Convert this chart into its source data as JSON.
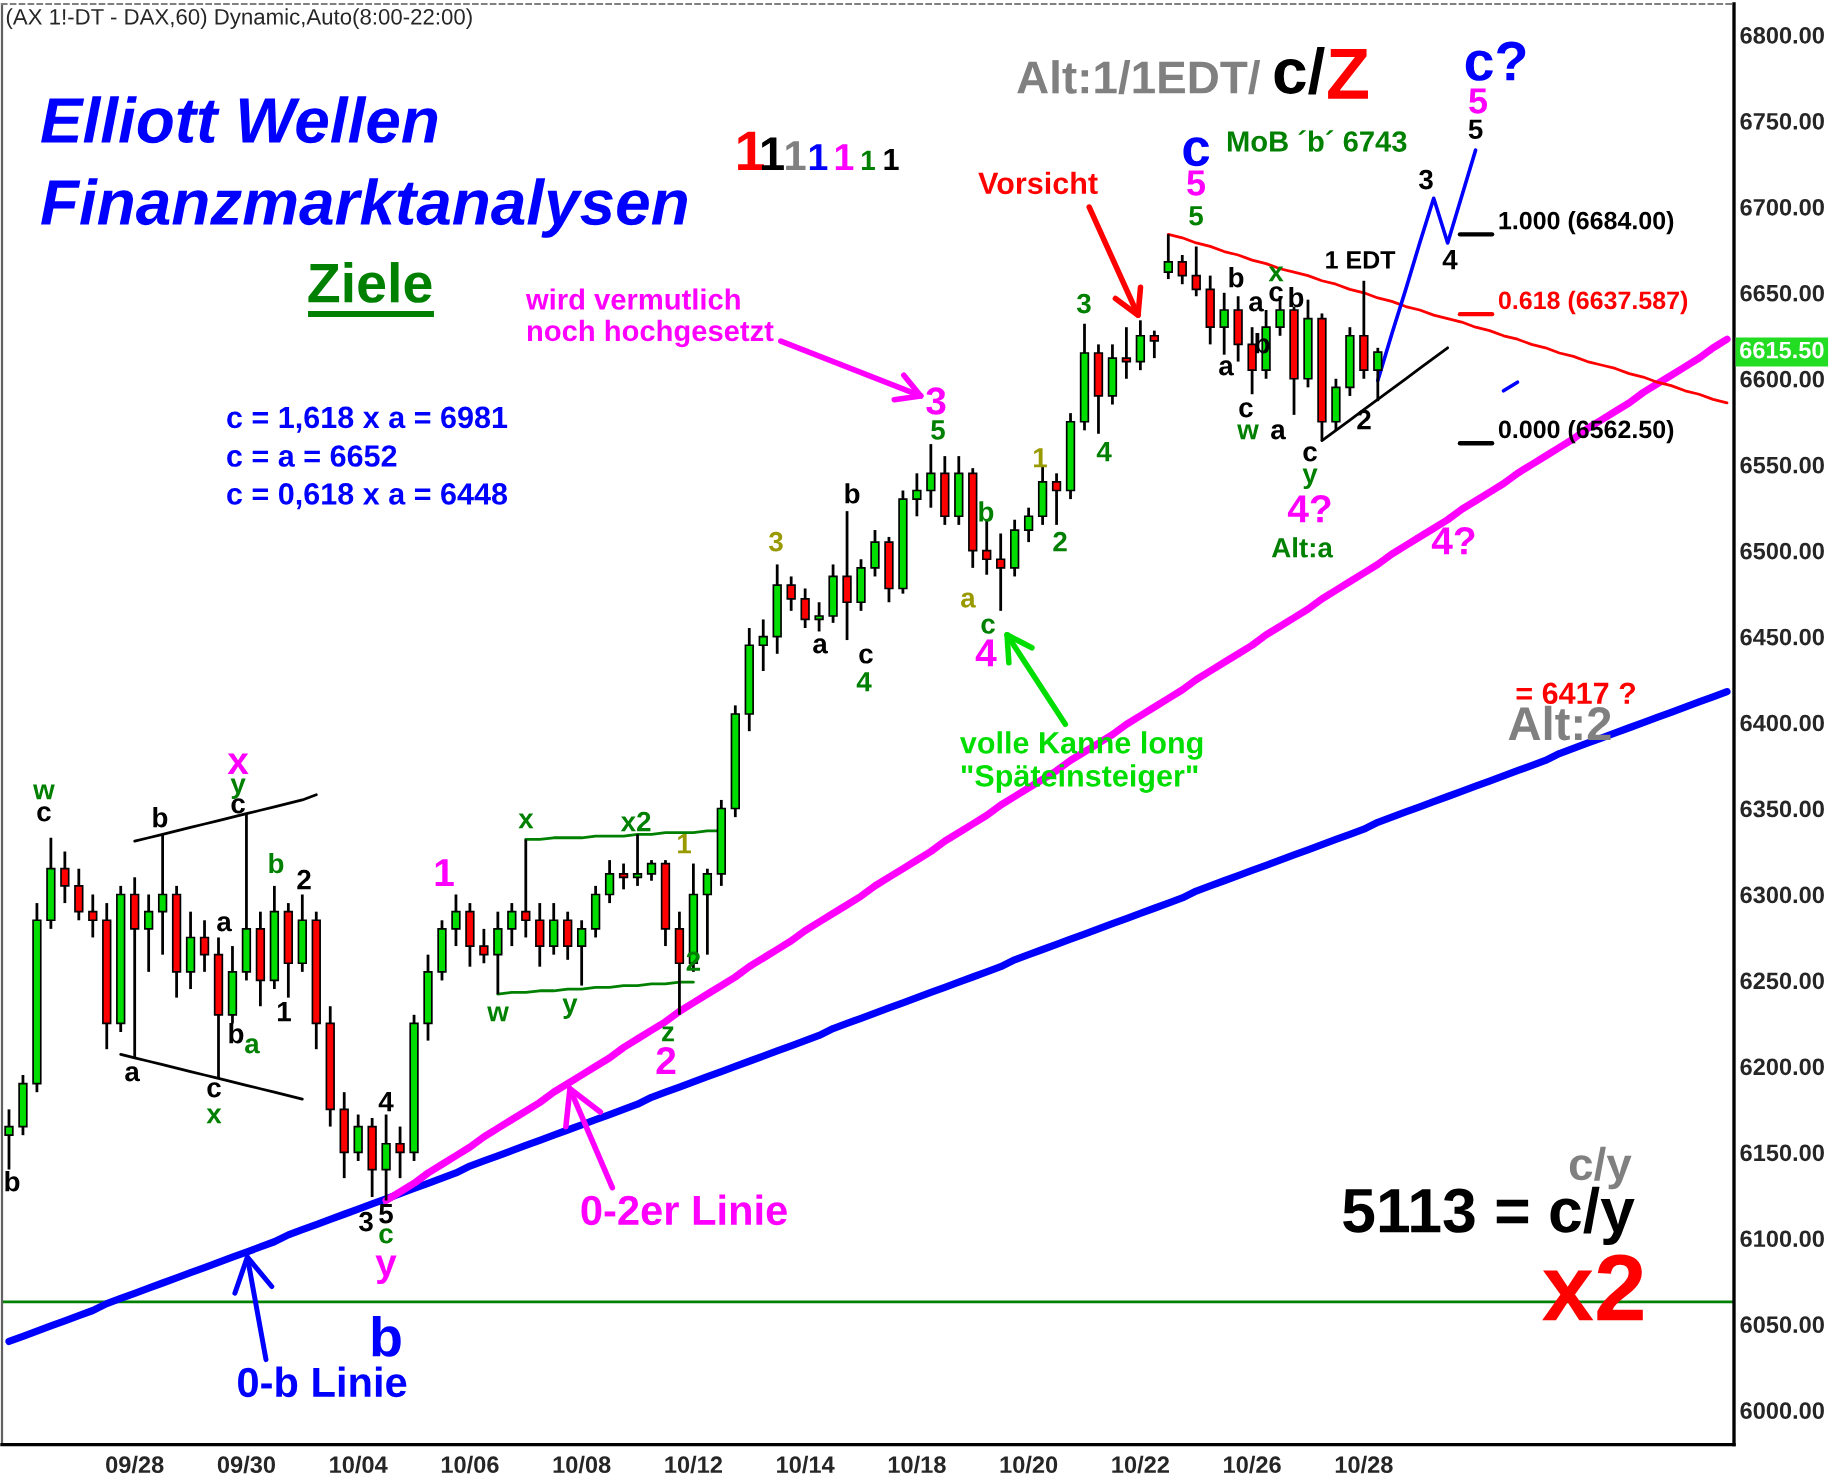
{
  "chart_data": {
    "type": "candlestick",
    "title": "(AX 1!-DT - DAX,60) Dynamic,Auto(8:00-22:00)",
    "categories": [
      null,
      null,
      null,
      null,
      null,
      null,
      null,
      null,
      null,
      "09/28",
      null,
      null,
      null,
      null,
      null,
      null,
      null,
      "09/30",
      null,
      null,
      null,
      null,
      null,
      null,
      null,
      "10/04",
      null,
      null,
      null,
      null,
      null,
      null,
      null,
      "10/06",
      null,
      null,
      null,
      null,
      null,
      null,
      null,
      "10/08",
      null,
      null,
      null,
      null,
      null,
      null,
      null,
      "10/12",
      null,
      null,
      null,
      null,
      null,
      null,
      null,
      "10/14",
      null,
      null,
      null,
      null,
      null,
      null,
      null,
      "10/18",
      null,
      null,
      null,
      null,
      null,
      null,
      null,
      "10/20",
      null,
      null,
      null,
      null,
      null,
      null,
      null,
      "10/22",
      null,
      null,
      null,
      null,
      null,
      null,
      null,
      "10/26",
      null,
      null,
      null,
      null,
      null,
      null,
      null,
      "10/28",
      null,
      null,
      null,
      null,
      null,
      null,
      null,
      null,
      null,
      null,
      null,
      null,
      null,
      null,
      null,
      null,
      null,
      null,
      null,
      null,
      null,
      null,
      null,
      null,
      null,
      null
    ],
    "ohlc": [
      [
        6160,
        6175,
        6140,
        6165
      ],
      [
        6165,
        6195,
        6160,
        6190
      ],
      [
        6190,
        6295,
        6185,
        6285
      ],
      [
        6285,
        6333,
        6280,
        6315
      ],
      [
        6315,
        6325,
        6295,
        6305
      ],
      [
        6305,
        6315,
        6285,
        6290
      ],
      [
        6290,
        6300,
        6275,
        6285
      ],
      [
        6285,
        6295,
        6210,
        6225
      ],
      [
        6225,
        6305,
        6220,
        6300
      ],
      [
        6300,
        6310,
        6205,
        6280
      ],
      [
        6280,
        6300,
        6255,
        6290
      ],
      [
        6290,
        6335,
        6265,
        6300
      ],
      [
        6300,
        6305,
        6240,
        6255
      ],
      [
        6255,
        6290,
        6245,
        6275
      ],
      [
        6275,
        6285,
        6255,
        6265
      ],
      [
        6265,
        6275,
        6193,
        6230
      ],
      [
        6230,
        6270,
        6225,
        6255
      ],
      [
        6255,
        6347,
        6250,
        6280
      ],
      [
        6280,
        6290,
        6235,
        6250
      ],
      [
        6250,
        6305,
        6245,
        6290
      ],
      [
        6290,
        6295,
        6240,
        6260
      ],
      [
        6260,
        6300,
        6255,
        6285
      ],
      [
        6285,
        6290,
        6210,
        6225
      ],
      [
        6225,
        6235,
        6165,
        6175
      ],
      [
        6175,
        6185,
        6135,
        6150
      ],
      [
        6150,
        6172,
        6145,
        6165
      ],
      [
        6165,
        6170,
        6124,
        6140
      ],
      [
        6140,
        6172,
        6122,
        6155
      ],
      [
        6155,
        6165,
        6135,
        6150
      ],
      [
        6150,
        6230,
        6145,
        6225
      ],
      [
        6225,
        6265,
        6215,
        6255
      ],
      [
        6255,
        6285,
        6250,
        6280
      ],
      [
        6280,
        6300,
        6270,
        6290
      ],
      [
        6290,
        6295,
        6258,
        6270
      ],
      [
        6270,
        6280,
        6260,
        6265
      ],
      [
        6265,
        6290,
        6242,
        6280
      ],
      [
        6280,
        6295,
        6270,
        6290
      ],
      [
        6290,
        6332,
        6275,
        6285
      ],
      [
        6285,
        6295,
        6258,
        6270
      ],
      [
        6270,
        6295,
        6265,
        6285
      ],
      [
        6285,
        6290,
        6262,
        6270
      ],
      [
        6270,
        6285,
        6247,
        6280
      ],
      [
        6280,
        6305,
        6275,
        6300
      ],
      [
        6300,
        6320,
        6295,
        6312
      ],
      [
        6312,
        6318,
        6303,
        6310
      ],
      [
        6310,
        6335,
        6305,
        6312
      ],
      [
        6312,
        6320,
        6308,
        6318
      ],
      [
        6318,
        6320,
        6270,
        6280
      ],
      [
        6280,
        6290,
        6230,
        6260
      ],
      [
        6260,
        6318,
        6255,
        6300
      ],
      [
        6300,
        6315,
        6265,
        6312
      ],
      [
        6312,
        6355,
        6305,
        6350
      ],
      [
        6350,
        6410,
        6345,
        6405
      ],
      [
        6405,
        6455,
        6395,
        6445
      ],
      [
        6445,
        6460,
        6430,
        6450
      ],
      [
        6450,
        6492,
        6440,
        6480
      ],
      [
        6480,
        6485,
        6465,
        6472
      ],
      [
        6472,
        6478,
        6455,
        6460
      ],
      [
        6460,
        6470,
        6453,
        6462
      ],
      [
        6462,
        6492,
        6458,
        6485
      ],
      [
        6485,
        6523,
        6448,
        6470
      ],
      [
        6470,
        6495,
        6465,
        6490
      ],
      [
        6490,
        6512,
        6485,
        6505
      ],
      [
        6505,
        6508,
        6470,
        6478
      ],
      [
        6478,
        6535,
        6475,
        6530
      ],
      [
        6530,
        6545,
        6520,
        6535
      ],
      [
        6535,
        6562,
        6525,
        6545
      ],
      [
        6545,
        6555,
        6515,
        6520
      ],
      [
        6520,
        6555,
        6515,
        6545
      ],
      [
        6545,
        6548,
        6490,
        6500
      ],
      [
        6500,
        6518,
        6486,
        6495
      ],
      [
        6495,
        6510,
        6465,
        6490
      ],
      [
        6490,
        6518,
        6485,
        6512
      ],
      [
        6512,
        6525,
        6505,
        6520
      ],
      [
        6520,
        6549,
        6515,
        6540
      ],
      [
        6540,
        6545,
        6515,
        6535
      ],
      [
        6535,
        6580,
        6530,
        6575
      ],
      [
        6575,
        6632,
        6570,
        6615
      ],
      [
        6615,
        6620,
        6568,
        6590
      ],
      [
        6590,
        6620,
        6585,
        6612
      ],
      [
        6612,
        6630,
        6600,
        6610
      ],
      [
        6610,
        6634,
        6605,
        6625
      ],
      [
        6625,
        6628,
        6612,
        6622
      ],
      [
        6662,
        6684,
        6658,
        6668
      ],
      [
        6668,
        6672,
        6655,
        6660
      ],
      [
        6660,
        6677,
        6648,
        6652
      ],
      [
        6652,
        6660,
        6620,
        6630
      ],
      [
        6630,
        6650,
        6614,
        6640
      ],
      [
        6640,
        6648,
        6610,
        6620
      ],
      [
        6620,
        6630,
        6591,
        6605
      ],
      [
        6605,
        6640,
        6600,
        6630
      ],
      [
        6630,
        6648,
        6625,
        6640
      ],
      [
        6640,
        6642,
        6579,
        6600
      ],
      [
        6600,
        6646,
        6595,
        6635
      ],
      [
        6635,
        6638,
        6564,
        6575
      ],
      [
        6575,
        6600,
        6570,
        6595
      ],
      [
        6595,
        6630,
        6590,
        6625
      ],
      [
        6625,
        6657,
        6600,
        6605
      ],
      [
        6605,
        6618,
        6587,
        6615.5
      ],
      null,
      null,
      null,
      null,
      null,
      null,
      null,
      null,
      null,
      null,
      null,
      null,
      null,
      null,
      null,
      null,
      null,
      null,
      null,
      null,
      null,
      null,
      null,
      null,
      null
    ],
    "series": [
      {
        "type": "line",
        "color": "#0000ff",
        "values": [
          6040,
          6043,
          6046,
          6049,
          6052,
          6055,
          6058,
          6062,
          6065,
          6068,
          6071,
          6074,
          6077,
          6080,
          6083,
          6086,
          6089,
          6092,
          6095,
          6098,
          6102,
          6105,
          6108,
          6111,
          6114,
          6117,
          6120,
          6123,
          6126,
          6129,
          6132,
          6135,
          6138,
          6142,
          6145,
          6148,
          6151,
          6154,
          6157,
          6160,
          6163,
          6166,
          6169,
          6172,
          6175,
          6178,
          6182,
          6185,
          6188,
          6191,
          6194,
          6197,
          6200,
          6203,
          6206,
          6209,
          6212,
          6215,
          6218,
          6222,
          6225,
          6228,
          6231,
          6234,
          6237,
          6240,
          6243,
          6246,
          6249,
          6252,
          6255,
          6258,
          6262,
          6265,
          6268,
          6271,
          6274,
          6277,
          6280,
          6283,
          6286,
          6289,
          6292,
          6295,
          6298,
          6302,
          6305,
          6308,
          6311,
          6314,
          6317,
          6320,
          6323,
          6326,
          6329,
          6332,
          6335,
          6338,
          6342,
          6345,
          6348,
          6351,
          6354,
          6357,
          6360,
          6363,
          6366,
          6369,
          6372,
          6375,
          6378,
          6382,
          6385,
          6388,
          6391,
          6394,
          6397,
          6400,
          6403,
          6406,
          6409,
          6412,
          6415,
          6418
        ]
      },
      {
        "type": "line",
        "color": "#ff00ff",
        "values": [
          null,
          null,
          null,
          null,
          null,
          null,
          null,
          null,
          null,
          null,
          null,
          null,
          null,
          null,
          null,
          null,
          null,
          null,
          null,
          null,
          null,
          null,
          null,
          null,
          null,
          null,
          null,
          6122,
          6127,
          6132,
          6138,
          6143,
          6148,
          6153,
          6159,
          6164,
          6169,
          6174,
          6179,
          6185,
          6190,
          6195,
          6200,
          6205,
          6211,
          6216,
          6221,
          6226,
          6232,
          6237,
          6242,
          6247,
          6252,
          6258,
          6263,
          6268,
          6273,
          6279,
          6284,
          6289,
          6294,
          6299,
          6305,
          6310,
          6315,
          6320,
          6325,
          6331,
          6336,
          6341,
          6346,
          6352,
          6357,
          6362,
          6367,
          6372,
          6378,
          6383,
          6388,
          6393,
          6399,
          6404,
          6409,
          6414,
          6419,
          6425,
          6430,
          6435,
          6440,
          6445,
          6451,
          6456,
          6461,
          6466,
          6472,
          6477,
          6482,
          6487,
          6492,
          6498,
          6503,
          6508,
          6513,
          6518,
          6524,
          6529,
          6534,
          6539,
          6545,
          6550,
          6555,
          6560,
          6565,
          6571,
          6576,
          6581,
          6586,
          6592,
          6597,
          6602,
          6607,
          6612,
          6618,
          6623
        ]
      },
      {
        "type": "line",
        "color": "#ff0000",
        "values": [
          null,
          null,
          null,
          null,
          null,
          null,
          null,
          null,
          null,
          null,
          null,
          null,
          null,
          null,
          null,
          null,
          null,
          null,
          null,
          null,
          null,
          null,
          null,
          null,
          null,
          null,
          null,
          null,
          null,
          null,
          null,
          null,
          null,
          null,
          null,
          null,
          null,
          null,
          null,
          null,
          null,
          null,
          null,
          null,
          null,
          null,
          null,
          null,
          null,
          null,
          null,
          null,
          null,
          null,
          null,
          null,
          null,
          null,
          null,
          null,
          null,
          null,
          null,
          null,
          null,
          null,
          null,
          null,
          null,
          null,
          null,
          null,
          null,
          null,
          null,
          null,
          null,
          null,
          null,
          null,
          null,
          null,
          null,
          6684,
          6682,
          6679,
          6677,
          6674,
          6672,
          6669,
          6667,
          6664,
          6662,
          6660,
          6657,
          6655,
          6652,
          6650,
          6647,
          6645,
          6642,
          6640,
          6637,
          6635,
          6633,
          6630,
          6628,
          6625,
          6623,
          6620,
          6618,
          6615,
          6613,
          6610,
          6608,
          6606,
          6603,
          6601,
          6598,
          6596,
          6593,
          6591,
          6588,
          6586
        ]
      },
      {
        "type": "line",
        "color": "#000000",
        "values": [
          null,
          null,
          null,
          null,
          null,
          null,
          null,
          null,
          null,
          null,
          null,
          null,
          null,
          null,
          null,
          null,
          null,
          null,
          null,
          null,
          null,
          null,
          null,
          null,
          null,
          null,
          null,
          null,
          null,
          null,
          null,
          null,
          null,
          null,
          null,
          null,
          null,
          null,
          null,
          null,
          null,
          null,
          null,
          null,
          null,
          null,
          null,
          null,
          null,
          null,
          null,
          null,
          null,
          null,
          null,
          null,
          null,
          null,
          null,
          null,
          null,
          null,
          null,
          null,
          null,
          null,
          null,
          null,
          null,
          null,
          null,
          null,
          null,
          null,
          null,
          null,
          null,
          null,
          null,
          null,
          null,
          null,
          null,
          null,
          null,
          null,
          null,
          null,
          null,
          null,
          null,
          null,
          null,
          null,
          6564,
          6570,
          6576,
          6582,
          6588,
          6594,
          6600,
          6606,
          6612,
          6618,
          null,
          null,
          null,
          null,
          null,
          null,
          null,
          null,
          null,
          null,
          null,
          null,
          null,
          null,
          null,
          null,
          null,
          null,
          null,
          null
        ]
      },
      {
        "type": "line",
        "color": "#0000ff",
        "values": [
          null,
          null,
          null,
          null,
          null,
          null,
          null,
          null,
          null,
          null,
          null,
          null,
          null,
          null,
          null,
          null,
          null,
          null,
          null,
          null,
          null,
          null,
          null,
          null,
          null,
          null,
          null,
          null,
          null,
          null,
          null,
          null,
          null,
          null,
          null,
          null,
          null,
          null,
          null,
          null,
          null,
          null,
          null,
          null,
          null,
          null,
          null,
          null,
          null,
          null,
          null,
          null,
          null,
          null,
          null,
          null,
          null,
          null,
          null,
          null,
          null,
          null,
          null,
          null,
          null,
          null,
          null,
          null,
          null,
          null,
          null,
          null,
          null,
          null,
          null,
          null,
          null,
          null,
          null,
          null,
          null,
          null,
          null,
          null,
          null,
          null,
          null,
          null,
          null,
          null,
          null,
          null,
          null,
          null,
          null,
          null,
          null,
          null,
          6599,
          6626,
          6652,
          6679,
          6705,
          6679,
          6706,
          6733,
          null,
          null,
          null,
          null,
          null,
          null,
          null,
          null,
          null,
          null,
          null,
          null,
          null,
          null,
          null,
          null,
          null,
          null
        ]
      },
      {
        "type": "line",
        "color": "#0000ff",
        "values": [
          null,
          null,
          null,
          null,
          null,
          null,
          null,
          null,
          null,
          null,
          null,
          null,
          null,
          null,
          null,
          null,
          null,
          null,
          null,
          null,
          null,
          null,
          null,
          null,
          null,
          null,
          null,
          null,
          null,
          null,
          null,
          null,
          null,
          null,
          null,
          null,
          null,
          null,
          null,
          null,
          null,
          null,
          null,
          null,
          null,
          null,
          null,
          null,
          null,
          null,
          null,
          null,
          null,
          null,
          null,
          null,
          null,
          null,
          null,
          null,
          null,
          null,
          null,
          null,
          null,
          null,
          null,
          null,
          null,
          null,
          null,
          null,
          null,
          null,
          null,
          null,
          null,
          null,
          null,
          null,
          null,
          null,
          null,
          null,
          null,
          null,
          null,
          null,
          null,
          null,
          null,
          null,
          null,
          null,
          null,
          null,
          null,
          null,
          null,
          null,
          null,
          null,
          null,
          null,
          null,
          null,
          null,
          6593,
          6598,
          null,
          null,
          null,
          null,
          null,
          null,
          null,
          null,
          null,
          null,
          null,
          null,
          null,
          null,
          null
        ]
      },
      {
        "type": "line",
        "color": "#000000",
        "values": [
          null,
          null,
          null,
          null,
          null,
          null,
          null,
          null,
          null,
          6331,
          6333,
          6335,
          6337,
          6339,
          6341,
          6343,
          6345,
          6347,
          6349,
          6351,
          6353,
          6355,
          6358,
          null,
          null,
          null,
          null,
          null,
          null,
          null,
          null,
          null,
          null,
          null,
          null,
          null,
          null,
          null,
          null,
          null,
          null,
          null,
          null,
          null,
          null,
          null,
          null,
          null,
          null,
          null,
          null,
          null,
          null,
          null,
          null,
          null,
          null,
          null,
          null,
          null,
          null,
          null,
          null,
          null,
          null,
          null,
          null,
          null,
          null,
          null,
          null,
          null,
          null,
          null,
          null,
          null,
          null,
          null,
          null,
          null,
          null,
          null,
          null,
          null,
          null,
          null,
          null,
          null,
          null,
          null,
          null,
          null,
          null,
          null,
          null,
          null,
          null,
          null,
          null,
          null,
          null,
          null,
          null,
          null,
          null,
          null,
          null,
          null,
          null,
          null,
          null,
          null,
          null,
          null,
          null,
          null,
          null,
          null,
          null,
          null,
          null,
          null,
          null,
          null
        ]
      },
      {
        "type": "line",
        "color": "#000000",
        "values": [
          null,
          null,
          null,
          null,
          null,
          null,
          null,
          null,
          6207,
          6205,
          6203,
          6201,
          6199,
          6197,
          6195,
          6193,
          6191,
          6189,
          6187,
          6185,
          6183,
          6181,
          null,
          null,
          null,
          null,
          null,
          null,
          null,
          null,
          null,
          null,
          null,
          null,
          null,
          null,
          null,
          null,
          null,
          null,
          null,
          null,
          null,
          null,
          null,
          null,
          null,
          null,
          null,
          null,
          null,
          null,
          null,
          null,
          null,
          null,
          null,
          null,
          null,
          null,
          null,
          null,
          null,
          null,
          null,
          null,
          null,
          null,
          null,
          null,
          null,
          null,
          null,
          null,
          null,
          null,
          null,
          null,
          null,
          null,
          null,
          null,
          null,
          null,
          null,
          null,
          null,
          null,
          null,
          null,
          null,
          null,
          null,
          null,
          null,
          null,
          null,
          null,
          null,
          null,
          null,
          null,
          null,
          null,
          null,
          null,
          null,
          null,
          null,
          null,
          null,
          null,
          null,
          null,
          null,
          null,
          null,
          null,
          null,
          null,
          null,
          null,
          null,
          null
        ]
      },
      {
        "type": "line",
        "color": "#008000",
        "values": [
          null,
          null,
          null,
          null,
          null,
          null,
          null,
          null,
          null,
          null,
          null,
          null,
          null,
          null,
          null,
          null,
          null,
          null,
          null,
          null,
          null,
          null,
          null,
          null,
          null,
          null,
          null,
          null,
          null,
          null,
          null,
          null,
          null,
          null,
          null,
          null,
          null,
          6332,
          6332,
          6333,
          6333,
          6333,
          6334,
          6334,
          6334,
          6335,
          6335,
          6336,
          6336,
          6336,
          6337,
          6337,
          null,
          null,
          null,
          null,
          null,
          null,
          null,
          null,
          null,
          null,
          null,
          null,
          null,
          null,
          null,
          null,
          null,
          null,
          null,
          null,
          null,
          null,
          null,
          null,
          null,
          null,
          null,
          null,
          null,
          null,
          null,
          null,
          null,
          null,
          null,
          null,
          null,
          null,
          null,
          null,
          null,
          null,
          null,
          null,
          null,
          null,
          null,
          null,
          null,
          null,
          null,
          null,
          null,
          null,
          null,
          null,
          null,
          null,
          null,
          null,
          null,
          null,
          null,
          null,
          null,
          null,
          null,
          null,
          null,
          null,
          null,
          null
        ]
      },
      {
        "type": "line",
        "color": "#008000",
        "values": [
          null,
          null,
          null,
          null,
          null,
          null,
          null,
          null,
          null,
          null,
          null,
          null,
          null,
          null,
          null,
          null,
          null,
          null,
          null,
          null,
          null,
          null,
          null,
          null,
          null,
          null,
          null,
          null,
          null,
          null,
          null,
          null,
          null,
          null,
          null,
          6242,
          6243,
          6243,
          6244,
          6244,
          6245,
          6245,
          6246,
          6246,
          6247,
          6247,
          6248,
          6248,
          6249,
          6249,
          null,
          null,
          null,
          null,
          null,
          null,
          null,
          null,
          null,
          null,
          null,
          null,
          null,
          null,
          null,
          null,
          null,
          null,
          null,
          null,
          null,
          null,
          null,
          null,
          null,
          null,
          null,
          null,
          null,
          null,
          null,
          null,
          null,
          null,
          null,
          null,
          null,
          null,
          null,
          null,
          null,
          null,
          null,
          null,
          null,
          null,
          null,
          null,
          null,
          null,
          null,
          null,
          null,
          null,
          null,
          null,
          null,
          null,
          null,
          null,
          null,
          null,
          null,
          null,
          null,
          null,
          null,
          null,
          null,
          null,
          null,
          null,
          null,
          null
        ]
      }
    ],
    "ref_lines": [
      {
        "axis": "y",
        "value": 6063,
        "color": "#008000"
      },
      {
        "axis": "y",
        "value": 6684,
        "label": "1.000 (6684.00)",
        "color": "#000000"
      },
      {
        "axis": "y",
        "value": 6637.587,
        "label": "0.618 (6637.587)",
        "color": "#ff0000"
      },
      {
        "axis": "y",
        "value": 6562.5,
        "label": "0.000 (6562.50)",
        "color": "#000000"
      }
    ],
    "ylim": [
      5980,
      6818
    ],
    "yticks": [
      {
        "value": 6000,
        "label": "6000.00"
      },
      {
        "value": 6050,
        "label": "6050.00"
      },
      {
        "value": 6100,
        "label": "6100.00"
      },
      {
        "value": 6150,
        "label": "6150.00"
      },
      {
        "value": 6200,
        "label": "6200.00"
      },
      {
        "value": 6250,
        "label": "6250.00"
      },
      {
        "value": 6300,
        "label": "6300.00"
      },
      {
        "value": 6350,
        "label": "6350.00"
      },
      {
        "value": 6400,
        "label": "6400.00"
      },
      {
        "value": 6450,
        "label": "6450.00"
      },
      {
        "value": 6500,
        "label": "6500.00"
      },
      {
        "value": 6550,
        "label": "6550.00"
      },
      {
        "value": 6600,
        "label": "6600.00"
      },
      {
        "value": 6650,
        "label": "6650.00"
      },
      {
        "value": 6700,
        "label": "6700.00"
      },
      {
        "value": 6750,
        "label": "6750.00"
      },
      {
        "value": 6800,
        "label": "6800.00"
      }
    ],
    "annotations": [
      "b",
      "w",
      "c",
      "b",
      "x",
      "y",
      "c",
      "b",
      "2",
      "a",
      "1",
      "b",
      "a",
      "a",
      "c",
      "x",
      "4",
      "3",
      "5",
      "c",
      "y",
      "b",
      "1",
      {
        "text": "x",
        "y": 6332
      },
      "w",
      "y",
      "x2",
      "1",
      {
        "text": "2",
        "y": 6249
      },
      "z",
      "2",
      "3",
      "a",
      "b",
      "c",
      "4",
      "3",
      "5",
      "b",
      "a",
      "c",
      "4",
      "1",
      "2",
      "3",
      "4",
      "c",
      "5",
      "5",
      "a",
      "b",
      "a",
      "x",
      "c",
      "b",
      "b",
      "c",
      "w",
      "a",
      "c",
      "y",
      "4?",
      "Alt:a",
      "1 EDT",
      "2",
      "3",
      "4",
      {
        "text": "5",
        "y": 6733
      },
      "5",
      "c?",
      "4?",
      "= 6417 ?",
      "Alt:2",
      "wird vermutlich\nnoch hochgesetzt",
      {
        "text": "Vorsicht",
        "x": "10/22",
        "y": 6634
      },
      "volle Kanne long\n\"Späteinsteiger\"",
      {
        "text": "0-2er Linie",
        "y": 6190
      },
      {
        "text": "0-b Linie",
        "x": "09/30",
        "y": 6092
      },
      "6615.50",
      "Elliott Wellen",
      "Finanzmarktanalysen",
      "Ziele",
      "c = 1,618 x a = 6981",
      "c = a = 6652",
      "c = 0,618 x a = 6448",
      "1",
      "1",
      "1",
      "1",
      "1",
      "1",
      "1",
      "Alt:1/1EDT/",
      "c/",
      "Z",
      "MoB ´b´ 6743",
      "c/y",
      "5113 = c/y",
      "x2"
    ]
  }
}
